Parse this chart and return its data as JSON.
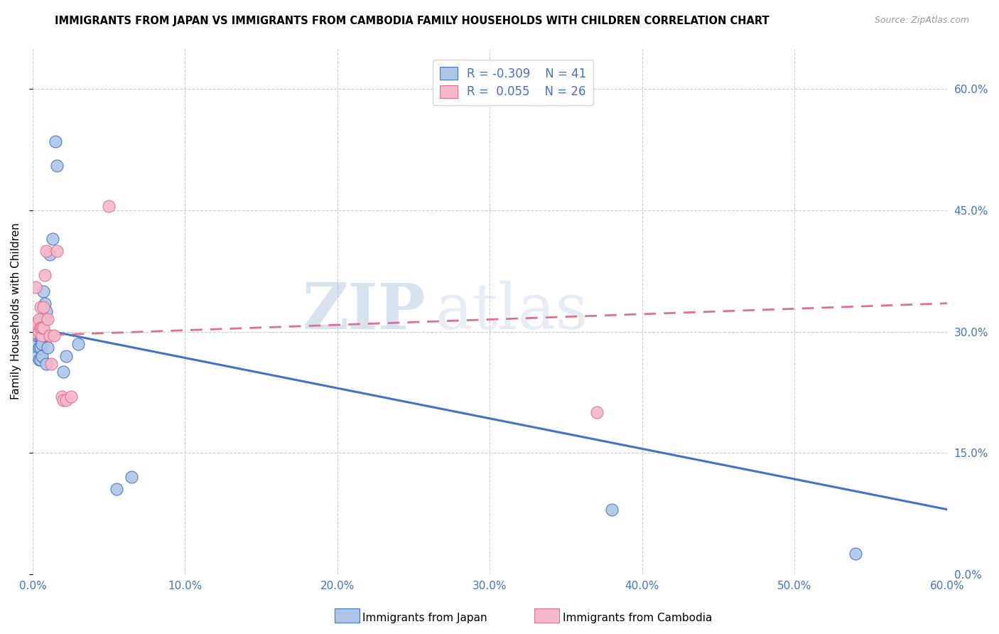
{
  "title": "IMMIGRANTS FROM JAPAN VS IMMIGRANTS FROM CAMBODIA FAMILY HOUSEHOLDS WITH CHILDREN CORRELATION CHART",
  "source": "Source: ZipAtlas.com",
  "ylabel": "Family Households with Children",
  "xlim": [
    0.0,
    0.6
  ],
  "ylim": [
    0.0,
    0.65
  ],
  "x_ticks": [
    0.0,
    0.1,
    0.2,
    0.3,
    0.4,
    0.5,
    0.6
  ],
  "y_ticks_right": [
    0.0,
    0.15,
    0.3,
    0.45,
    0.6
  ],
  "color_japan": "#adc6e8",
  "color_cambodia": "#f5b8c8",
  "color_japan_line": "#4472c4",
  "color_cambodia_line": "#e07090",
  "watermark_zip": "ZIP",
  "watermark_atlas": "atlas",
  "japan_x": [
    0.001,
    0.002,
    0.002,
    0.003,
    0.003,
    0.003,
    0.004,
    0.004,
    0.004,
    0.004,
    0.005,
    0.005,
    0.005,
    0.005,
    0.006,
    0.006,
    0.006,
    0.006,
    0.006,
    0.007,
    0.007,
    0.008,
    0.008,
    0.009,
    0.009,
    0.01,
    0.011,
    0.013,
    0.015,
    0.016,
    0.02,
    0.022,
    0.03,
    0.055,
    0.065,
    0.38,
    0.54
  ],
  "japan_y": [
    0.295,
    0.3,
    0.285,
    0.31,
    0.295,
    0.27,
    0.295,
    0.3,
    0.265,
    0.28,
    0.31,
    0.295,
    0.28,
    0.265,
    0.315,
    0.29,
    0.285,
    0.27,
    0.305,
    0.295,
    0.35,
    0.335,
    0.315,
    0.325,
    0.26,
    0.28,
    0.395,
    0.415,
    0.535,
    0.505,
    0.25,
    0.27,
    0.285,
    0.105,
    0.12,
    0.08,
    0.025
  ],
  "cambodia_x": [
    0.001,
    0.002,
    0.003,
    0.004,
    0.004,
    0.005,
    0.005,
    0.006,
    0.006,
    0.007,
    0.007,
    0.008,
    0.009,
    0.01,
    0.011,
    0.012,
    0.014,
    0.016,
    0.019,
    0.02,
    0.022,
    0.025,
    0.05,
    0.37
  ],
  "cambodia_y": [
    0.3,
    0.355,
    0.31,
    0.315,
    0.3,
    0.305,
    0.33,
    0.295,
    0.305,
    0.33,
    0.305,
    0.37,
    0.4,
    0.315,
    0.295,
    0.26,
    0.295,
    0.4,
    0.22,
    0.215,
    0.215,
    0.22,
    0.455,
    0.2
  ],
  "japan_line_x0": 0.0,
  "japan_line_y0": 0.305,
  "japan_line_x1": 0.6,
  "japan_line_y1": 0.08,
  "cambodia_line_x0": 0.0,
  "cambodia_line_y0": 0.295,
  "cambodia_line_x1": 0.6,
  "cambodia_line_y1": 0.335
}
